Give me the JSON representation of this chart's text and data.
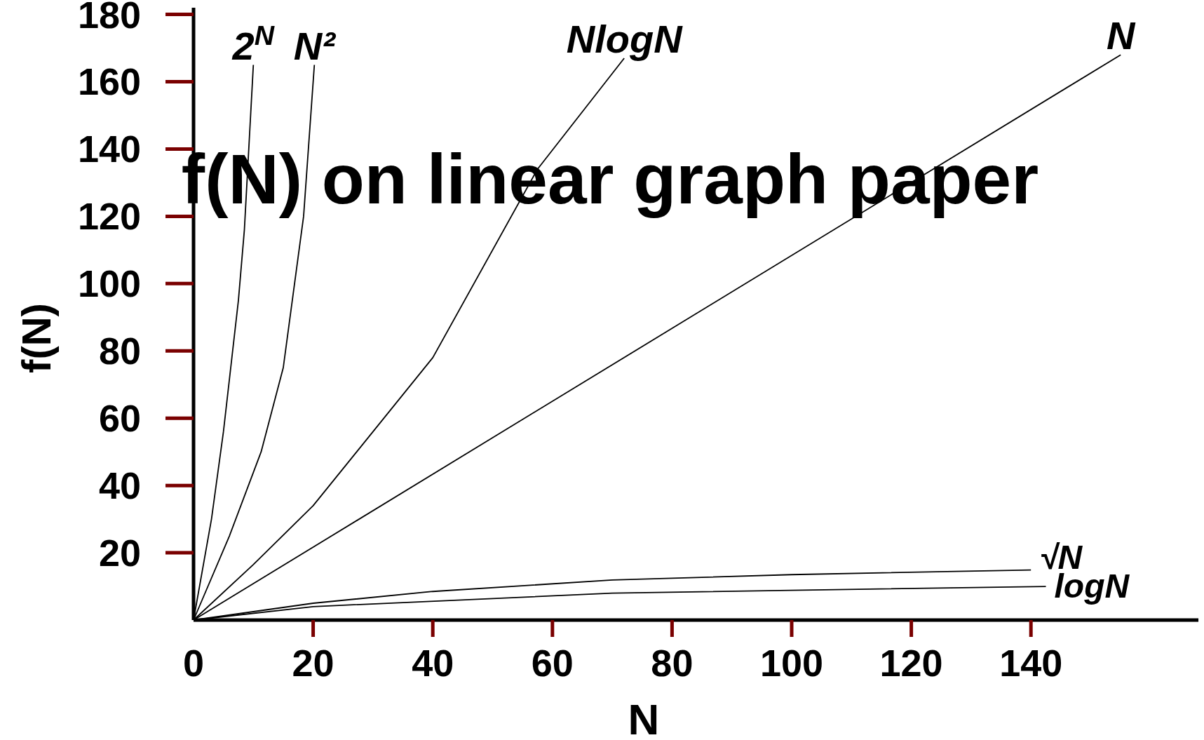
{
  "chart_data": {
    "type": "line",
    "title": "f(N) on linear graph paper",
    "xlabel": "N",
    "ylabel": "f(N)",
    "xlim": [
      0,
      168
    ],
    "ylim": [
      0,
      182
    ],
    "xticks": [
      {
        "value": 0,
        "label": "0"
      },
      20,
      40,
      60,
      80,
      100,
      120,
      140
    ],
    "yticks": [
      20,
      40,
      60,
      80,
      100,
      120,
      140,
      160,
      180
    ],
    "grid": false,
    "marker": "none",
    "line_style": "solid",
    "series": [
      {
        "name": "2$^{N}$",
        "color": "#000000",
        "x": [
          0,
          3,
          5,
          7.5,
          8.5,
          10
        ],
        "values": [
          0,
          30,
          56,
          95,
          116,
          165
        ]
      },
      {
        "name": "N²",
        "color": "#000000",
        "x": [
          0,
          6,
          11.3,
          15,
          18.4,
          20.2
        ],
        "values": [
          0,
          25,
          50,
          75,
          120,
          165
        ]
      },
      {
        "name": "NlogN",
        "color": "#000000",
        "x": [
          0,
          10,
          20,
          40,
          57.5,
          72
        ],
        "values": [
          0,
          16.5,
          34,
          78,
          134,
          167
        ]
      },
      {
        "name": "N",
        "color": "#000000",
        "x": [
          0,
          155
        ],
        "values": [
          0,
          168
        ]
      },
      {
        "name": "√N",
        "color": "#000000",
        "x": [
          0,
          20,
          40,
          70,
          100,
          140
        ],
        "values": [
          0,
          5,
          8.5,
          11.9,
          13.5,
          14.9
        ]
      },
      {
        "name": "logN",
        "color": "#000000",
        "x": [
          0,
          20,
          70,
          142.5
        ],
        "values": [
          0,
          4,
          8,
          10
        ]
      }
    ]
  }
}
